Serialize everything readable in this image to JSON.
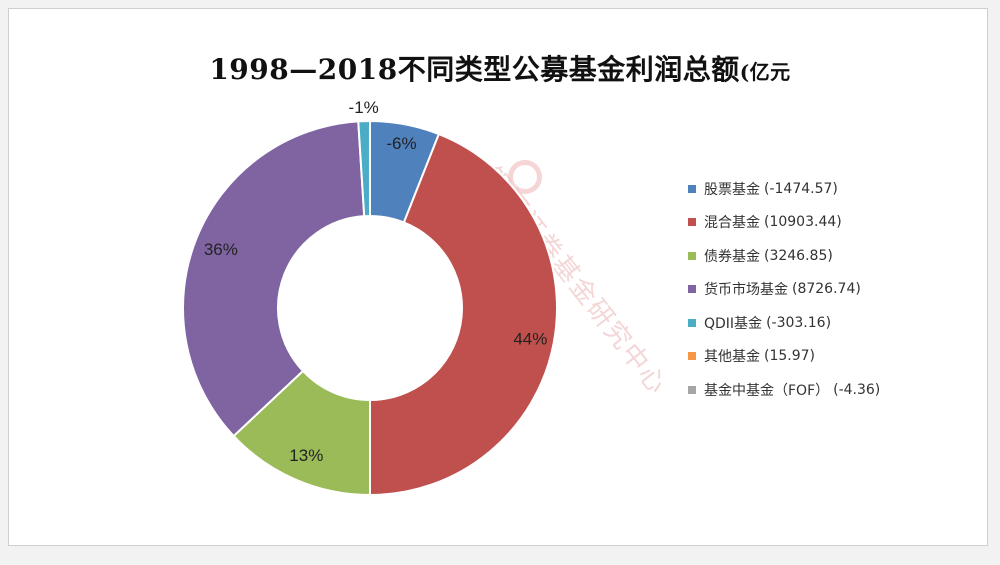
{
  "title": {
    "main": "1998—2018不同类型公募基金利润总额",
    "unit": "(亿元"
  },
  "watermark": "银河证券基金研究中心",
  "chart_data": {
    "type": "pie",
    "donut": true,
    "title": "1998—2018不同类型公募基金利润总额(亿元",
    "legend_position": "right",
    "slices": [
      {
        "name": "股票基金",
        "value_label": "(-1474.57)",
        "value": -1474.57,
        "percent": 6,
        "percent_label": "-6%",
        "color": "#4f81bd"
      },
      {
        "name": "混合基金",
        "value_label": "(10903.44)",
        "value": 10903.44,
        "percent": 44,
        "percent_label": "44%",
        "color": "#c0504d"
      },
      {
        "name": "债券基金",
        "value_label": "(3246.85)",
        "value": 3246.85,
        "percent": 13,
        "percent_label": "13%",
        "color": "#9bbb59"
      },
      {
        "name": "货币市场基金",
        "value_label": "(8726.74)",
        "value": 8726.74,
        "percent": 36,
        "percent_label": "36%",
        "color": "#8064a2"
      },
      {
        "name": "QDII基金",
        "value_label": "(-303.16)",
        "value": -303.16,
        "percent": 1,
        "percent_label": "-1%",
        "color": "#4bacc6"
      },
      {
        "name": "其他基金",
        "value_label": "(15.97)",
        "value": 15.97,
        "percent": 0,
        "percent_label": "",
        "color": "#f79646"
      },
      {
        "name": "基金中基金（FOF）",
        "value_label": "(-4.36)",
        "value": -4.36,
        "percent": 0,
        "percent_label": "",
        "color": "#a5a5a5"
      }
    ]
  }
}
